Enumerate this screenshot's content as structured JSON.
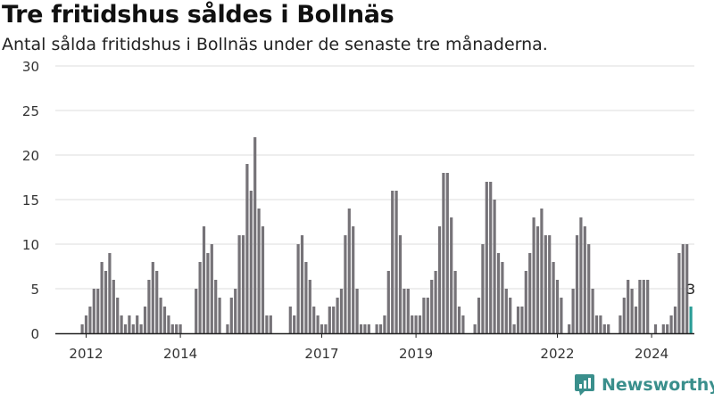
{
  "chart_data": {
    "type": "bar",
    "title": "Tre fritidshus såldes i Bollnäs",
    "subtitle": "Antal sålda fritidshus i Bollnäs under de senaste tre månaderna.",
    "ylim": [
      0,
      30
    ],
    "yticks": [
      0,
      5,
      10,
      15,
      20,
      25,
      30
    ],
    "xticks": [
      "2012",
      "2014",
      "2017",
      "2019",
      "2022",
      "2024"
    ],
    "grid": true,
    "colors": {
      "bar": "#767378",
      "highlight": "#2a9d96",
      "grid": "#dddddd",
      "axis": "#222222"
    },
    "highlight_label": "3",
    "values": [
      1,
      2,
      3,
      5,
      5,
      8,
      7,
      9,
      6,
      4,
      2,
      1,
      2,
      1,
      2,
      1,
      3,
      6,
      8,
      7,
      4,
      3,
      2,
      1,
      1,
      1,
      0,
      0,
      0,
      5,
      8,
      12,
      9,
      10,
      6,
      4,
      0,
      1,
      4,
      5,
      11,
      11,
      19,
      16,
      22,
      14,
      12,
      2,
      2,
      0,
      0,
      0,
      0,
      3,
      2,
      10,
      11,
      8,
      6,
      3,
      2,
      1,
      1,
      3,
      3,
      4,
      5,
      11,
      14,
      12,
      5,
      1,
      1,
      1,
      0,
      1,
      1,
      2,
      7,
      16,
      16,
      11,
      5,
      5,
      2,
      2,
      2,
      4,
      4,
      6,
      7,
      12,
      18,
      18,
      13,
      7,
      3,
      2,
      0,
      0,
      1,
      4,
      10,
      17,
      17,
      15,
      9,
      8,
      5,
      4,
      1,
      3,
      3,
      7,
      9,
      13,
      12,
      14,
      11,
      11,
      8,
      6,
      4,
      0,
      1,
      5,
      11,
      13,
      12,
      10,
      5,
      2,
      2,
      1,
      1,
      0,
      0,
      2,
      4,
      6,
      5,
      3,
      6,
      6,
      6,
      0,
      1,
      0,
      1,
      1,
      2,
      3,
      9,
      10,
      10,
      3
    ],
    "highlight_index": 155
  },
  "brand": {
    "name": "Newsworthy",
    "icon": "newsworthy-logo-icon"
  }
}
